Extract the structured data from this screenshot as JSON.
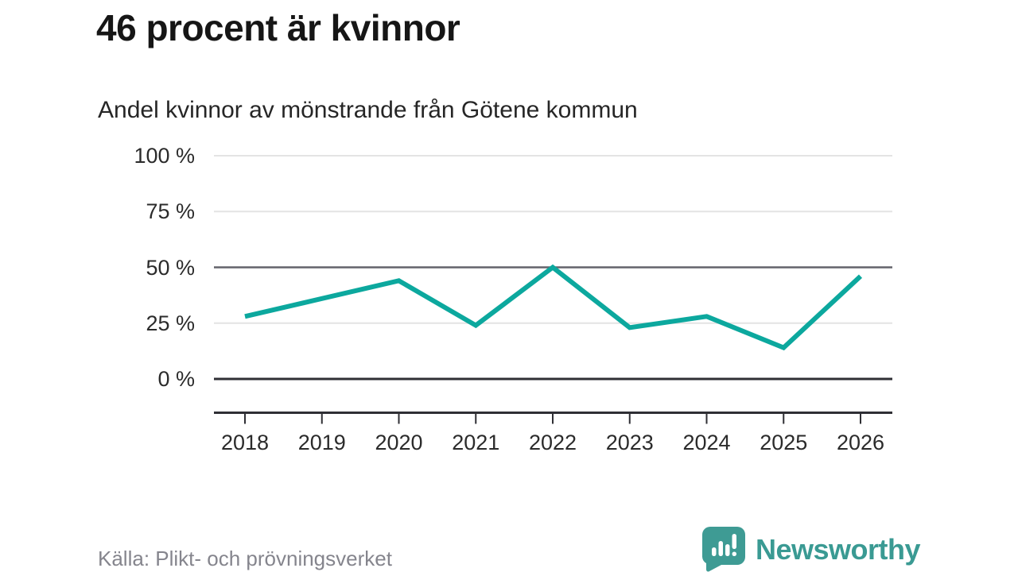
{
  "header": {
    "title": "46 procent är kvinnor",
    "subtitle": "Andel kvinnor av mönstrande från Götene kommun"
  },
  "chart_data": {
    "type": "line",
    "title": "Andel kvinnor av mönstrande från Götene kommun",
    "x": [
      "2018",
      "2019",
      "2020",
      "2021",
      "2022",
      "2023",
      "2024",
      "2025",
      "2026"
    ],
    "series": [
      {
        "name": "Andel kvinnor (%)",
        "values": [
          28,
          36,
          44,
          24,
          50,
          23,
          28,
          14,
          46
        ]
      }
    ],
    "ylim": [
      0,
      100
    ],
    "yticks": [
      {
        "value": 100,
        "label": "100 %",
        "emphasis": "light"
      },
      {
        "value": 75,
        "label": "75 %",
        "emphasis": "light"
      },
      {
        "value": 50,
        "label": "50 %",
        "emphasis": "strong"
      },
      {
        "value": 25,
        "label": "25 %",
        "emphasis": "light"
      },
      {
        "value": 0,
        "label": "0 %",
        "emphasis": "axis"
      }
    ],
    "legend": "none",
    "grid": "horizontal",
    "line_color": "#0ca89e",
    "grid_light_color": "#e4e4e4",
    "grid_strong_color": "#63636b",
    "axis_color": "#2f2f34"
  },
  "footer": {
    "source": "Källa: Plikt- och prövningsverket",
    "logo_text": "Newsworthy",
    "logo_color": "#3e9b94"
  }
}
